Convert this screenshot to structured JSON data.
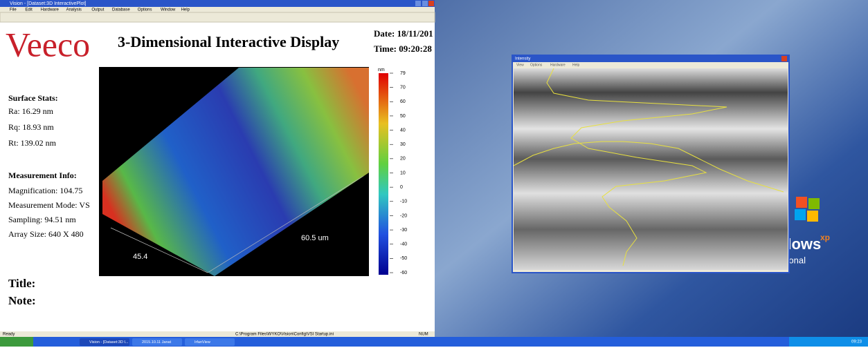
{
  "main_window": {
    "title": "Vision - [Dataset:3D InteractivePlot]",
    "menu": [
      "File",
      "Edit",
      "Hardware",
      "Analysis",
      "Output",
      "Database",
      "Options",
      "Window",
      "Help"
    ]
  },
  "report": {
    "logo": "Veeco",
    "title": "3-Dimensional Interactive Display",
    "date": "Date: 18/11/201",
    "time": "Time: 09:20:28",
    "surface_stats": {
      "heading": "Surface Stats:",
      "lines": [
        "Ra: 16.29 nm",
        "Rq: 18.93 nm",
        "Rt: 139.02 nm"
      ]
    },
    "measurement_info": {
      "heading": "Measurement Info:",
      "lines": [
        "Magnification: 104.75",
        "Measurement Mode: VS",
        "Sampling: 94.51 nm",
        "Array Size: 640 X 480"
      ]
    },
    "plot": {
      "x_label": "45.4",
      "y_label": "60.5 um",
      "colorbar_unit": "nm",
      "colorbar_ticks": [
        79,
        70,
        60,
        50,
        40,
        30,
        20,
        10,
        0,
        -10,
        -20,
        -30,
        -40,
        -50,
        -60
      ]
    },
    "title_label": "Title:",
    "note_label": "Note:"
  },
  "status_bar": {
    "left": "Ready",
    "path": "C:\\Program Files\\WYKO\\Vision\\Config\\VSI Startup.ini",
    "num": "NUM"
  },
  "taskbar": {
    "buttons": [
      "Vision - [Dataset:3D I...",
      "2015.10.11 Janat",
      "IrfanView"
    ],
    "clock": "09:23"
  },
  "intensity_window": {
    "title": "Intensity",
    "menu": [
      "View",
      "Options",
      "Hardware",
      "Help"
    ]
  },
  "desktop": {
    "logo_text": "dows",
    "logo_sup": "xp",
    "logo_sub": "sional"
  }
}
